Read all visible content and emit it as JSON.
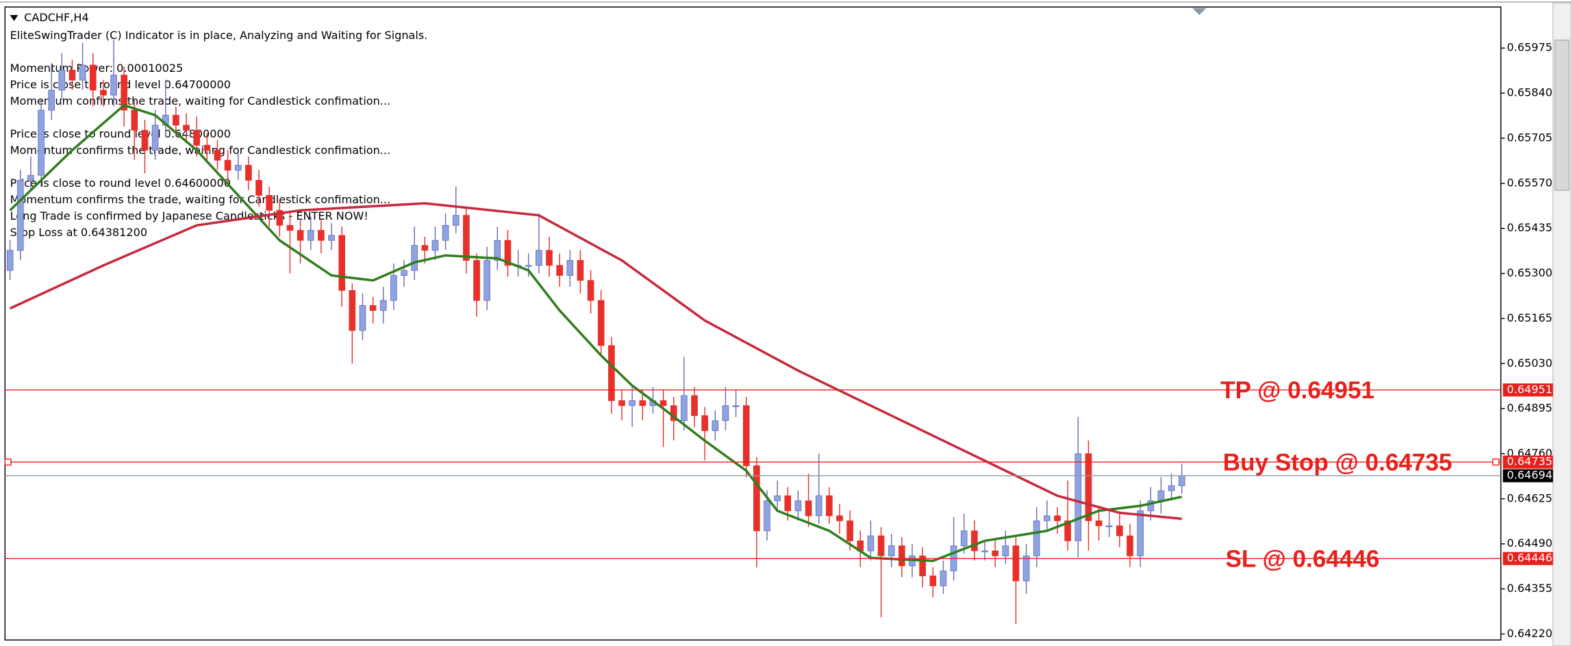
{
  "chart_data": {
    "type": "candlestick",
    "title": "CADCHF,H4",
    "comments": [
      [
        "EliteSwingTrader (C) Indicator is in place, Analyzing and Waiting for Signals."
      ],
      [
        "Momentum Power: 0.00010025",
        "Price is close to round level 0.64700000",
        "Momentum confirms the trade, waiting for Candlestick confimation..."
      ],
      [
        "Price is close to round level 0.64800000",
        "Momentum confirms the trade, waiting for Candlestick confimation..."
      ],
      [
        "Price is close to round level 0.64600000",
        "Momentum confirms the trade, waiting for Candlestick confimation...",
        "Long Trade is confirmed by Japanese Candlesticks - ENTER NOW!",
        "Stop Loss at 0.64381200"
      ]
    ],
    "open": [
      0.65309,
      0.65369,
      0.65579,
      0.65594,
      0.65789,
      0.65849,
      0.65909,
      0.65879,
      0.65924,
      0.65849,
      0.65834,
      0.65894,
      0.65789,
      0.65729,
      0.65669,
      0.65744,
      0.65774,
      0.65744,
      0.65729,
      0.65684,
      0.65669,
      0.65639,
      0.65609,
      0.65624,
      0.65579,
      0.65534,
      0.65489,
      0.65444,
      0.65429,
      0.65399,
      0.65429,
      0.65399,
      0.65414,
      0.65249,
      0.65129,
      0.65204,
      0.65189,
      0.65219,
      0.65294,
      0.65309,
      0.65384,
      0.65369,
      0.65399,
      0.65444,
      0.65474,
      0.65339,
      0.65219,
      0.65339,
      0.65399,
      0.65324,
      0.65324,
      0.65324,
      0.65369,
      0.65324,
      0.65294,
      0.65339,
      0.65279,
      0.65219,
      0.65084,
      0.64919,
      0.64904,
      0.64919,
      0.64904,
      0.64919,
      0.64904,
      0.64859,
      0.64934,
      0.64874,
      0.64829,
      0.64859,
      0.64904,
      0.64904,
      0.64724,
      0.64529,
      0.64619,
      0.64634,
      0.64589,
      0.64619,
      0.64574,
      0.64634,
      0.64574,
      0.64559,
      0.64499,
      0.64469,
      0.64514,
      0.64454,
      0.64484,
      0.64424,
      0.64454,
      0.64394,
      0.64364,
      0.64409,
      0.64484,
      0.64529,
      0.64469,
      0.64469,
      0.64454,
      0.64484,
      0.64379,
      0.64454,
      0.64559,
      0.64574,
      0.64559,
      0.64499,
      0.6476,
      0.64559,
      0.64544,
      0.64544,
      0.64514,
      0.64454,
      0.64589,
      0.64619,
      0.64649,
      0.64664
    ],
    "high": [
      0.654,
      0.6561,
      0.6565,
      0.6582,
      0.6593,
      0.6596,
      0.6594,
      0.6599,
      0.6596,
      0.6588,
      0.66,
      0.6592,
      0.6582,
      0.6576,
      0.6579,
      0.6588,
      0.658,
      0.6578,
      0.6577,
      0.6572,
      0.657,
      0.6567,
      0.6566,
      0.6565,
      0.6561,
      0.6556,
      0.6552,
      0.6548,
      0.6546,
      0.6547,
      0.6546,
      0.6545,
      0.6544,
      0.6527,
      0.6524,
      0.6523,
      0.6526,
      0.6533,
      0.6534,
      0.6544,
      0.6541,
      0.6544,
      0.6548,
      0.6556,
      0.655,
      0.6536,
      0.6538,
      0.6544,
      0.6543,
      0.6537,
      0.6536,
      0.6548,
      0.6541,
      0.6536,
      0.6537,
      0.6537,
      0.6531,
      0.6525,
      0.6511,
      0.6495,
      0.6496,
      0.6495,
      0.6496,
      0.6495,
      0.6493,
      0.6505,
      0.6496,
      0.649,
      0.6489,
      0.6496,
      0.6495,
      0.6493,
      0.6475,
      0.6465,
      0.6468,
      0.6466,
      0.6465,
      0.647,
      0.6476,
      0.6466,
      0.6461,
      0.6459,
      0.6453,
      0.6456,
      0.6454,
      0.6452,
      0.6451,
      0.6449,
      0.6448,
      0.6442,
      0.6444,
      0.6457,
      0.6458,
      0.6456,
      0.645,
      0.645,
      0.6453,
      0.6451,
      0.6449,
      0.646,
      0.6462,
      0.646,
      0.6468,
      0.6487,
      0.648,
      0.646,
      0.6459,
      0.6458,
      0.6455,
      0.6462,
      0.6466,
      0.6469,
      0.647,
      0.6473
    ],
    "low": [
      0.6528,
      0.6534,
      0.6555,
      0.6556,
      0.6576,
      0.6582,
      0.6585,
      0.6585,
      0.658,
      0.658,
      0.658,
      0.6574,
      0.6564,
      0.656,
      0.6564,
      0.6571,
      0.6571,
      0.6569,
      0.6565,
      0.6563,
      0.6561,
      0.6556,
      0.6558,
      0.6555,
      0.655,
      0.6544,
      0.6541,
      0.653,
      0.6533,
      0.6537,
      0.6536,
      0.6537,
      0.652,
      0.6503,
      0.651,
      0.6515,
      0.6515,
      0.6519,
      0.6526,
      0.6528,
      0.6533,
      0.6534,
      0.6537,
      0.6542,
      0.653,
      0.6517,
      0.6519,
      0.6531,
      0.6529,
      0.6529,
      0.6529,
      0.653,
      0.6529,
      0.6526,
      0.6526,
      0.6524,
      0.6518,
      0.6505,
      0.6488,
      0.6486,
      0.6484,
      0.6486,
      0.6488,
      0.6478,
      0.648,
      0.6483,
      0.6484,
      0.6474,
      0.648,
      0.6483,
      0.6487,
      0.6469,
      0.6442,
      0.645,
      0.6459,
      0.6456,
      0.6456,
      0.6454,
      0.6455,
      0.6455,
      0.6452,
      0.6447,
      0.6442,
      0.6444,
      0.6427,
      0.6442,
      0.6439,
      0.6439,
      0.6436,
      0.6433,
      0.6434,
      0.6438,
      0.6446,
      0.6444,
      0.6444,
      0.6442,
      0.6443,
      0.6425,
      0.6434,
      0.6442,
      0.6453,
      0.6452,
      0.6447,
      0.6445,
      0.6447,
      0.645,
      0.6451,
      0.6448,
      0.6442,
      0.6442,
      0.6456,
      0.6458,
      0.6462,
      0.6464
    ],
    "close": [
      0.65369,
      0.65579,
      0.65594,
      0.65789,
      0.65849,
      0.65909,
      0.65879,
      0.65924,
      0.65849,
      0.65834,
      0.65894,
      0.65789,
      0.65729,
      0.65669,
      0.65744,
      0.65774,
      0.65744,
      0.65729,
      0.65684,
      0.65669,
      0.65639,
      0.65609,
      0.65624,
      0.65579,
      0.65534,
      0.65489,
      0.65444,
      0.65429,
      0.65399,
      0.65429,
      0.65399,
      0.65414,
      0.65249,
      0.65129,
      0.65204,
      0.65189,
      0.65219,
      0.65294,
      0.65309,
      0.65384,
      0.65369,
      0.65399,
      0.65444,
      0.65474,
      0.65339,
      0.65219,
      0.65339,
      0.65399,
      0.65324,
      0.65324,
      0.65324,
      0.65369,
      0.65324,
      0.65294,
      0.65339,
      0.65279,
      0.65219,
      0.65084,
      0.64919,
      0.64904,
      0.64919,
      0.64904,
      0.64919,
      0.64904,
      0.64859,
      0.64934,
      0.64874,
      0.64829,
      0.64859,
      0.64904,
      0.64904,
      0.64724,
      0.64529,
      0.64619,
      0.64634,
      0.64589,
      0.64619,
      0.64574,
      0.64634,
      0.64574,
      0.64559,
      0.64499,
      0.64469,
      0.64514,
      0.64454,
      0.64484,
      0.64424,
      0.64454,
      0.64394,
      0.64364,
      0.64409,
      0.64484,
      0.64529,
      0.64469,
      0.64469,
      0.64454,
      0.64484,
      0.64379,
      0.64454,
      0.64559,
      0.64574,
      0.64559,
      0.64499,
      0.6476,
      0.64559,
      0.64544,
      0.64544,
      0.64514,
      0.64454,
      0.64589,
      0.64619,
      0.64649,
      0.64664,
      0.64694
    ],
    "colors": {
      "up": "#8ea3e2",
      "up_edge": "#6b6fb5",
      "down": "#e8302a"
    },
    "moving_averages": [
      {
        "color": "#2f7d1c",
        "x": [
          0,
          6,
          11,
          14,
          18,
          22,
          26,
          31,
          35,
          39,
          42,
          47,
          50,
          53,
          57,
          60,
          63,
          67,
          71,
          74,
          79,
          83,
          89,
          94,
          100,
          105,
          109,
          113
        ],
        "values": [
          0.65489,
          0.65669,
          0.65804,
          0.65774,
          0.65669,
          0.65534,
          0.65399,
          0.65294,
          0.65279,
          0.65333,
          0.65354,
          0.65345,
          0.65309,
          0.65189,
          0.65054,
          0.64964,
          0.64895,
          0.64799,
          0.64709,
          0.64589,
          0.64529,
          0.64448,
          0.64439,
          0.64499,
          0.64529,
          0.64589,
          0.64604,
          0.64631
        ]
      },
      {
        "color": "#c8283c",
        "x": [
          0,
          9,
          18,
          28,
          40,
          51,
          59,
          67,
          76,
          86,
          96,
          101,
          107,
          113
        ],
        "values": [
          0.65195,
          0.65324,
          0.65444,
          0.65489,
          0.6551,
          0.65474,
          0.65339,
          0.65159,
          0.65009,
          0.64859,
          0.64709,
          0.64634,
          0.64583,
          0.64565
        ]
      }
    ],
    "levels": [
      {
        "value": 0.64951,
        "annotation": "TP @ 0.64951",
        "color": "#e8201c",
        "label_color": "#e8201c"
      },
      {
        "value": 0.64735,
        "annotation": "Buy Stop @ 0.64735",
        "color": "#e8201c",
        "label_color": "#e8201c"
      },
      {
        "value": 0.64694,
        "color": "#8a9aa8",
        "label_color": "#000000"
      },
      {
        "value": 0.64446,
        "annotation": "SL @ 0.64446",
        "color": "#e8201c",
        "label_color": "#e8201c"
      }
    ],
    "ylim": [
      0.64205,
      0.66095
    ],
    "yticks": [
      0.65975,
      {
        "value": 0.6584,
        "label": "0.65840"
      },
      0.65705,
      {
        "value": 0.6557,
        "label": "0.65570"
      },
      0.65435,
      {
        "value": 0.653,
        "label": "0.65300"
      },
      0.65165,
      {
        "value": 0.6503,
        "label": "0.65030"
      },
      0.64895,
      {
        "value": 0.6476,
        "label": "0.64760"
      },
      0.64625,
      {
        "value": 0.6449,
        "label": "0.64490"
      },
      0.64355,
      {
        "value": 0.6422,
        "label": "0.64220"
      }
    ]
  }
}
